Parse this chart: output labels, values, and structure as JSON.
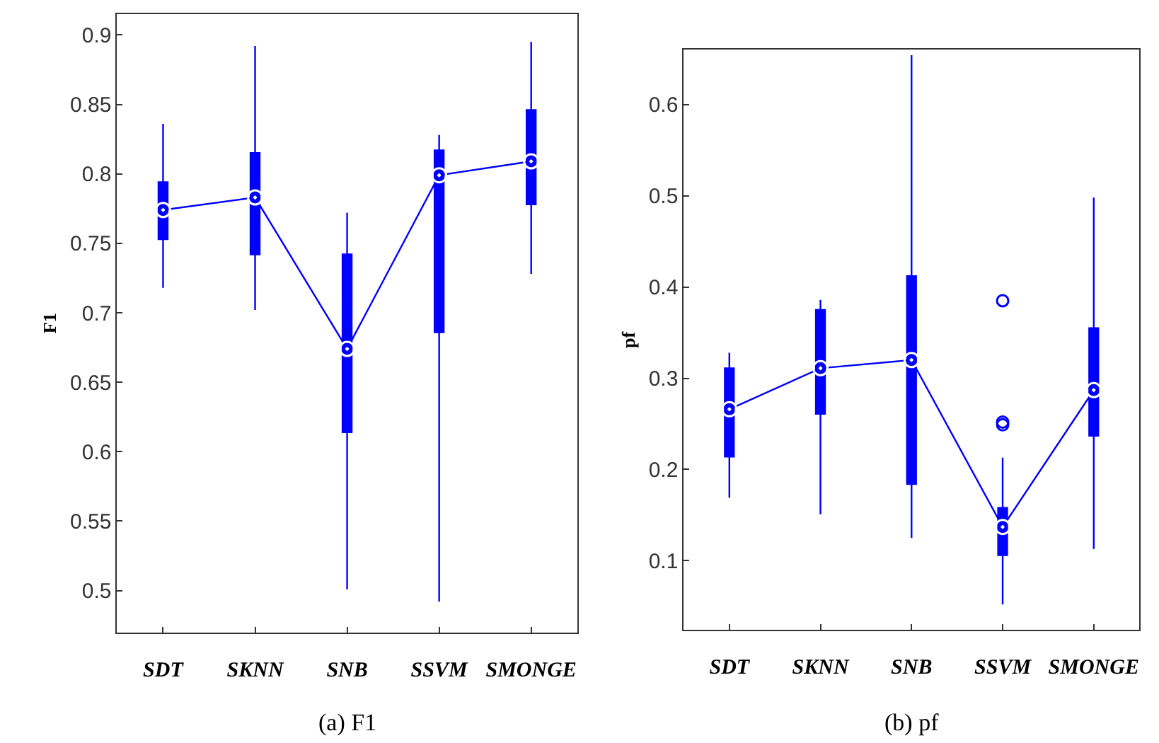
{
  "chart_data": [
    {
      "type": "box",
      "ylabel": "F1",
      "categories": [
        "SDT",
        "SKNN",
        "SNB",
        "SSVM",
        "SMONGE"
      ],
      "ylim": [
        0.47,
        0.915
      ],
      "yticks": [
        {
          "value": 0.5,
          "label": "0.5"
        },
        {
          "value": 0.55,
          "label": "0.55"
        },
        {
          "value": 0.6,
          "label": "0.6"
        },
        {
          "value": 0.65,
          "label": "0.65"
        },
        {
          "value": 0.7,
          "label": "0.7"
        },
        {
          "value": 0.75,
          "label": "0.75"
        },
        {
          "value": 0.8,
          "label": "0.8"
        },
        {
          "value": 0.85,
          "label": "0.85"
        },
        {
          "value": 0.9,
          "label": "0.9"
        }
      ],
      "color": "#0000ff",
      "boxes": [
        {
          "low": 0.718,
          "q1": 0.753,
          "median": 0.774,
          "q3": 0.794,
          "high": 0.836
        },
        {
          "low": 0.702,
          "q1": 0.742,
          "median": 0.783,
          "q3": 0.815,
          "high": 0.892
        },
        {
          "low": 0.501,
          "q1": 0.614,
          "median": 0.674,
          "q3": 0.742,
          "high": 0.772
        },
        {
          "low": 0.492,
          "q1": 0.686,
          "median": 0.799,
          "q3": 0.817,
          "high": 0.828
        },
        {
          "low": 0.728,
          "q1": 0.778,
          "median": 0.809,
          "q3": 0.846,
          "high": 0.895
        }
      ],
      "series": [
        {
          "type": "line",
          "color": "#0000ff",
          "marker": "circle",
          "values": [
            0.774,
            0.783,
            0.674,
            0.799,
            0.809
          ]
        }
      ],
      "annotations": [
        "(a) F1"
      ]
    },
    {
      "type": "box",
      "ylabel": "pf",
      "categories": [
        "SDT",
        "SKNN",
        "SNB",
        "SSVM",
        "SMONGE"
      ],
      "ylim": [
        0.024,
        0.66
      ],
      "yticks": [
        0.1,
        0.2,
        0.3,
        0.4,
        0.5,
        0.6
      ],
      "color": "#0000ff",
      "boxes": [
        {
          "low": 0.169,
          "q1": 0.214,
          "median": 0.266,
          "q3": 0.311,
          "high": 0.328
        },
        {
          "low": 0.151,
          "q1": 0.261,
          "median": 0.311,
          "q3": 0.375,
          "high": 0.386
        },
        {
          "low": 0.125,
          "q1": 0.184,
          "median": 0.32,
          "q3": 0.412,
          "high": 0.654
        },
        {
          "low": 0.052,
          "q1": 0.106,
          "median": 0.137,
          "q3": 0.158,
          "high": 0.213,
          "outliers": [
            0.252,
            0.249,
            0.385
          ]
        },
        {
          "low": 0.113,
          "q1": 0.237,
          "median": 0.287,
          "q3": 0.355,
          "high": 0.498
        }
      ],
      "series": [
        {
          "type": "line",
          "color": "#0000ff",
          "marker": "circle",
          "values": [
            0.266,
            0.311,
            0.32,
            0.137,
            0.287
          ]
        }
      ],
      "annotations": [
        "(b) pf"
      ]
    }
  ]
}
